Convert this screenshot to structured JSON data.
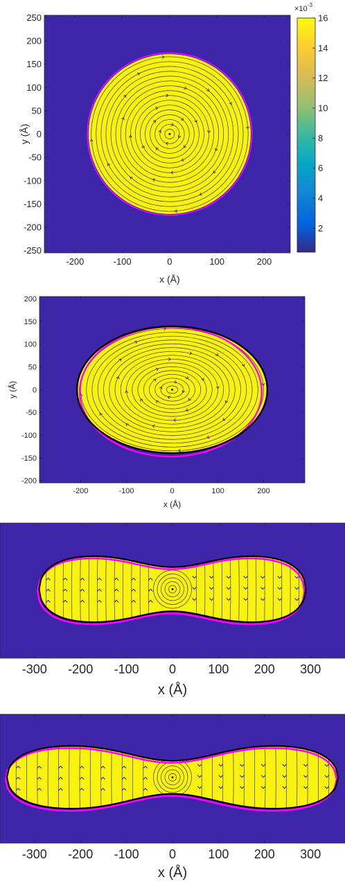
{
  "chart_data": [
    {
      "type": "heatmap",
      "subtype": "density map with streamlines and boundary contours",
      "xlabel": "x (Å)",
      "ylabel": "y (Å)",
      "xlim": [
        -265,
        255
      ],
      "ylim": [
        -255,
        255
      ],
      "xticks": [
        -200,
        -100,
        0,
        100,
        200
      ],
      "yticks": [
        250,
        200,
        150,
        100,
        50,
        0,
        -50,
        -100,
        -150,
        -200,
        -250
      ],
      "shape": {
        "kind": "disk",
        "radius_x": 170,
        "radius_y": 170,
        "center_streamline_rings": 16
      },
      "colorbar": {
        "min": 0.4,
        "max": 16,
        "ticks": [
          2,
          4,
          6,
          8,
          10,
          12,
          14,
          16
        ],
        "multiplier_label": "×10",
        "multiplier_exponent": "-3",
        "colormap": "parula"
      },
      "colors": {
        "background": "#3E26A8",
        "interior": "#F9F20E",
        "boundary_fit": "#FF00FF",
        "boundary": "#000000",
        "streamline": "#2424A8"
      }
    },
    {
      "type": "heatmap",
      "subtype": "density map with streamlines and boundary contours",
      "xlabel": "x (Å)",
      "ylabel": "y (Å)",
      "xlim": [
        -290,
        290
      ],
      "ylim": [
        -205,
        205
      ],
      "xticks": [
        -200,
        -100,
        0,
        100,
        200
      ],
      "yticks": [
        200,
        150,
        100,
        50,
        0,
        -50,
        -100,
        -150,
        -200
      ],
      "shape": {
        "kind": "ellipse",
        "radius_x": 205,
        "radius_y": 138,
        "center_streamline_rings": 16
      }
    },
    {
      "type": "heatmap",
      "subtype": "density map with streamlines and boundary contours",
      "xlabel": "x (Å)",
      "ylabel": "",
      "xlim": [
        -375,
        375
      ],
      "xticks": [
        -300,
        -200,
        -100,
        0,
        100,
        200,
        300
      ],
      "shape": {
        "kind": "peanut",
        "half_length": 290,
        "max_half_width": 75,
        "neck_half_width": 48
      }
    },
    {
      "type": "heatmap",
      "subtype": "density map with streamlines and boundary contours",
      "xlabel": "x (Å)",
      "ylabel": "",
      "xlim": [
        -375,
        375
      ],
      "xticks": [
        -300,
        -200,
        -100,
        0,
        100,
        200,
        300
      ],
      "shape": {
        "kind": "peanut",
        "half_length": 360,
        "max_half_width": 72,
        "neck_half_width": 36
      }
    }
  ]
}
